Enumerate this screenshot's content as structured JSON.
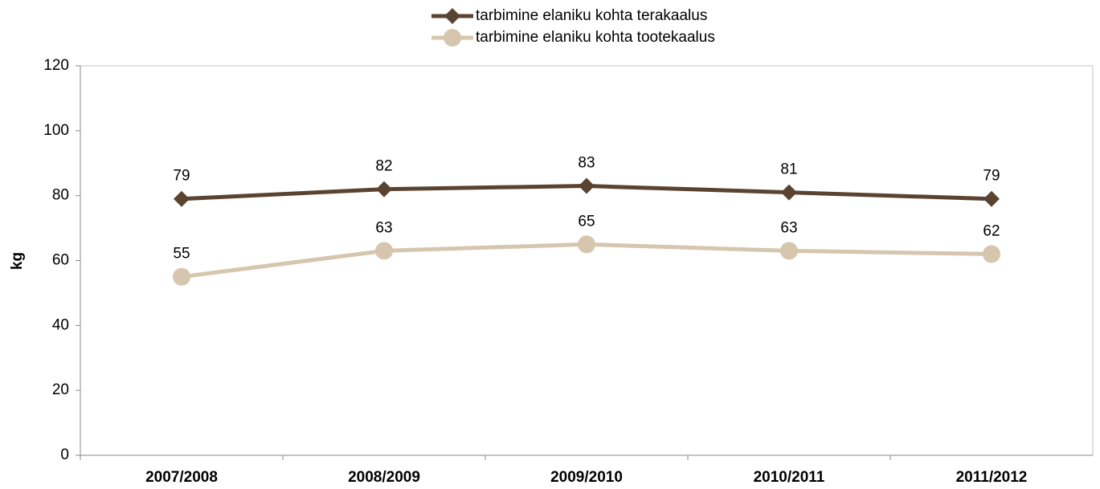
{
  "chart_data": {
    "type": "line",
    "y_label": "kg",
    "categories": [
      "2007/2008",
      "2008/2009",
      "2009/2010",
      "2010/2011",
      "2011/2012"
    ],
    "series": [
      {
        "name": "tarbimine elaniku kohta terakaalus",
        "color": "#5b4331",
        "marker": "diamond",
        "values": [
          79,
          82,
          83,
          81,
          79
        ]
      },
      {
        "name": "tarbimine elaniku kohta tootekaalus",
        "color": "#d5c6ad",
        "marker": "circle",
        "values": [
          55,
          63,
          65,
          63,
          62
        ]
      }
    ],
    "ylim": [
      0,
      120
    ],
    "yticks": [
      0,
      20,
      40,
      60,
      80,
      100,
      120
    ],
    "grid": false,
    "legend": "top"
  }
}
